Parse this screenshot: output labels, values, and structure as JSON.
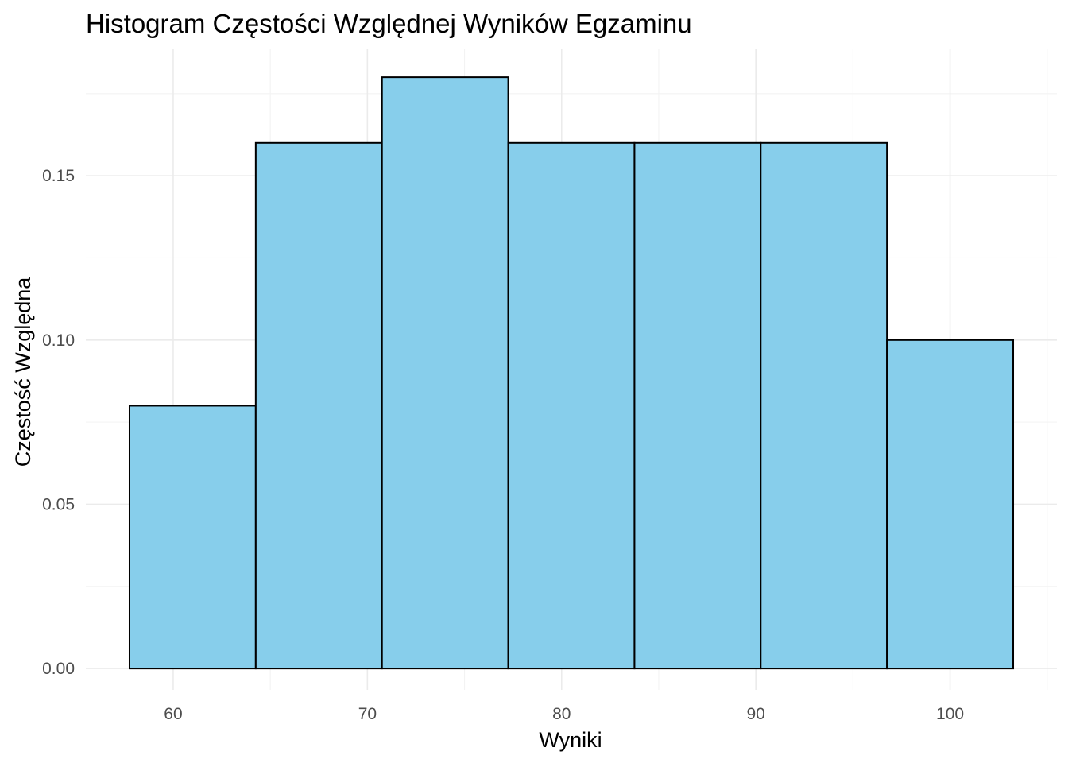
{
  "chart_data": {
    "type": "bar",
    "title": "Histogram Częstości Względnej Wyników Egzaminu",
    "xlabel": "Wyniki",
    "ylabel": "Częstość Względna",
    "bins": [
      {
        "x_start": 57.75,
        "x_end": 64.25,
        "value": 0.08
      },
      {
        "x_start": 64.25,
        "x_end": 70.75,
        "value": 0.16
      },
      {
        "x_start": 70.75,
        "x_end": 77.25,
        "value": 0.18
      },
      {
        "x_start": 77.25,
        "x_end": 83.75,
        "value": 0.16
      },
      {
        "x_start": 83.75,
        "x_end": 90.25,
        "value": 0.16
      },
      {
        "x_start": 90.25,
        "x_end": 96.75,
        "value": 0.16
      },
      {
        "x_start": 96.75,
        "x_end": 103.25,
        "value": 0.1
      }
    ],
    "x_ticks": [
      60,
      70,
      80,
      90,
      100
    ],
    "x_tick_labels": [
      "60",
      "70",
      "80",
      "90",
      "100"
    ],
    "y_ticks": [
      0.0,
      0.05,
      0.1,
      0.15
    ],
    "y_tick_labels": [
      "0.00",
      "0.05",
      "0.10",
      "0.15"
    ],
    "xlim": [
      55.5,
      105.5
    ],
    "ylim": [
      -0.0065,
      0.1885
    ],
    "grid": true,
    "bar_fill": "#87ceeb",
    "bar_outline": "#000000"
  }
}
